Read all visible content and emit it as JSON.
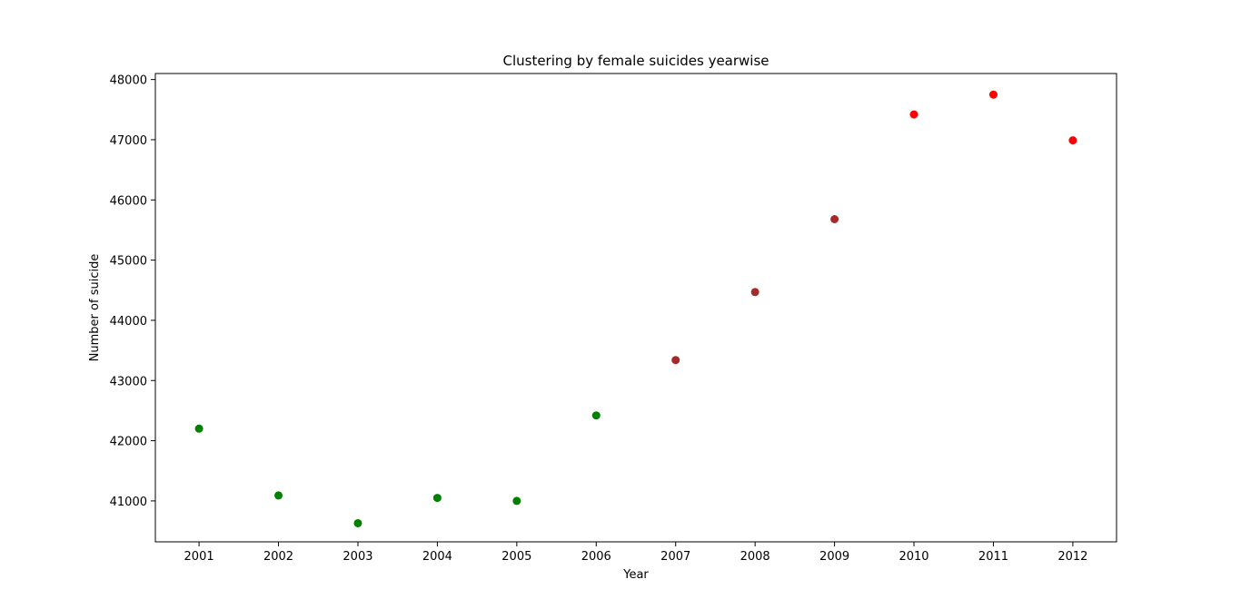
{
  "chart_data": {
    "type": "scatter",
    "title": "Clustering by female suicides yearwise",
    "xlabel": "Year",
    "ylabel": "Number of suicide",
    "x_ticks": [
      "2001",
      "2002",
      "2003",
      "2004",
      "2005",
      "2006",
      "2007",
      "2008",
      "2009",
      "2010",
      "2011",
      "2012"
    ],
    "y_ticks": [
      "41000",
      "42000",
      "43000",
      "44000",
      "45000",
      "46000",
      "47000",
      "48000"
    ],
    "xlim": [
      2000.45,
      2012.55
    ],
    "ylim": [
      40320,
      48100
    ],
    "grid": false,
    "points": [
      {
        "x": 2001,
        "y": 42200,
        "color": "#008000"
      },
      {
        "x": 2002,
        "y": 41090,
        "color": "#008000"
      },
      {
        "x": 2003,
        "y": 40630,
        "color": "#008000"
      },
      {
        "x": 2004,
        "y": 41050,
        "color": "#008000"
      },
      {
        "x": 2005,
        "y": 41000,
        "color": "#008000"
      },
      {
        "x": 2006,
        "y": 42420,
        "color": "#008000"
      },
      {
        "x": 2007,
        "y": 43340,
        "color": "#a52a2a"
      },
      {
        "x": 2008,
        "y": 44470,
        "color": "#a52a2a"
      },
      {
        "x": 2009,
        "y": 45680,
        "color": "#a52a2a"
      },
      {
        "x": 2010,
        "y": 47420,
        "color": "#ff0000"
      },
      {
        "x": 2011,
        "y": 47750,
        "color": "#ff0000"
      },
      {
        "x": 2012,
        "y": 46990,
        "color": "#ff0000"
      }
    ]
  }
}
